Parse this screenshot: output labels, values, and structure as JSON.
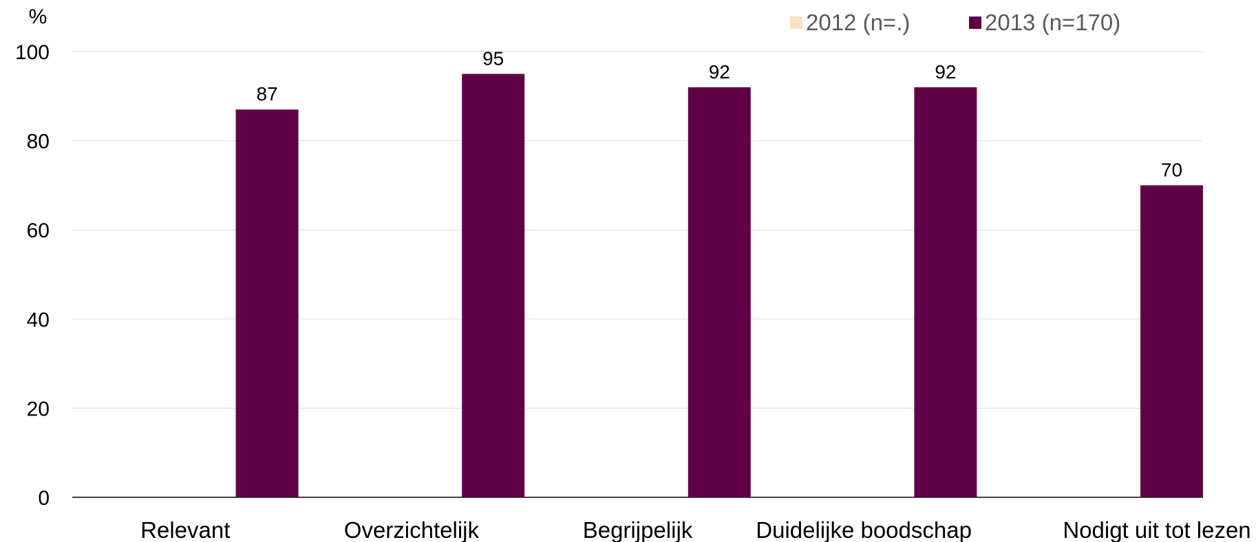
{
  "chart_data": {
    "type": "bar",
    "ylabel": "%",
    "ylim": [
      0,
      100
    ],
    "yticks": [
      "0",
      "20",
      "40",
      "60",
      "80",
      "100"
    ],
    "categories": [
      "Relevant",
      "Overzichtelijk",
      "Begrijpelijk",
      "Duidelijke boodschap",
      "Nodigt uit tot lezen"
    ],
    "series": [
      {
        "name": "2012 (n=.)",
        "color": "#fde0c5",
        "values": [
          null,
          null,
          null,
          null,
          null
        ]
      },
      {
        "name": "2013 (n=170)",
        "color": "#600047",
        "values": [
          87,
          95,
          92,
          92,
          70
        ]
      }
    ],
    "data_labels": [
      "87",
      "95",
      "92",
      "92",
      "70"
    ],
    "grid": true,
    "legend": "top-right"
  }
}
